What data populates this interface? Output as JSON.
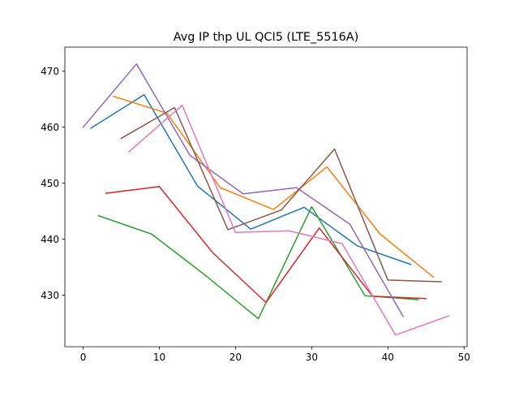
{
  "chart_data": {
    "type": "line",
    "title": "Avg IP thp UL QCI5 (LTE_5516A)",
    "xlabel": "",
    "ylabel": "",
    "xlim": [
      -2.4,
      50.4
    ],
    "ylim": [
      420.8,
      474.3
    ],
    "xticks": [
      0,
      10,
      20,
      30,
      40,
      50
    ],
    "yticks": [
      430,
      440,
      450,
      460,
      470
    ],
    "grid": false,
    "legend": "none",
    "series": [
      {
        "color": "#1f77b4",
        "x": [
          1,
          8,
          15,
          22,
          29,
          36,
          43
        ],
        "y": [
          459.8,
          465.8,
          449.5,
          441.8,
          445.7,
          438.8,
          435.5
        ]
      },
      {
        "color": "#ff7f0e",
        "x": [
          4,
          11,
          18,
          25,
          32,
          39,
          46
        ],
        "y": [
          465.5,
          462.5,
          449.2,
          445.3,
          452.9,
          440.9,
          433.2
        ]
      },
      {
        "color": "#2ca02c",
        "x": [
          2,
          9,
          16,
          23,
          30,
          37,
          44
        ],
        "y": [
          444.2,
          440.9,
          433.6,
          425.8,
          445.8,
          429.9,
          429.2
        ]
      },
      {
        "color": "#d62728",
        "x": [
          3,
          10,
          17,
          24,
          31,
          38,
          45
        ],
        "y": [
          448.2,
          449.4,
          437.6,
          428.7,
          442.0,
          429.8,
          429.4
        ]
      },
      {
        "color": "#9467bd",
        "x": [
          0,
          7,
          14,
          21,
          28,
          35,
          42
        ],
        "y": [
          460.0,
          471.3,
          455.0,
          448.1,
          449.2,
          442.7,
          426.2
        ]
      },
      {
        "color": "#8c564b",
        "x": [
          5,
          12,
          19,
          26,
          33,
          40,
          47
        ],
        "y": [
          458.0,
          463.5,
          441.7,
          445.2,
          456.1,
          432.7,
          432.4
        ]
      },
      {
        "color": "#e377c2",
        "x": [
          6,
          13,
          20,
          27,
          34,
          41,
          48
        ],
        "y": [
          455.6,
          463.9,
          441.2,
          441.5,
          439.2,
          422.9,
          426.3
        ]
      }
    ]
  }
}
